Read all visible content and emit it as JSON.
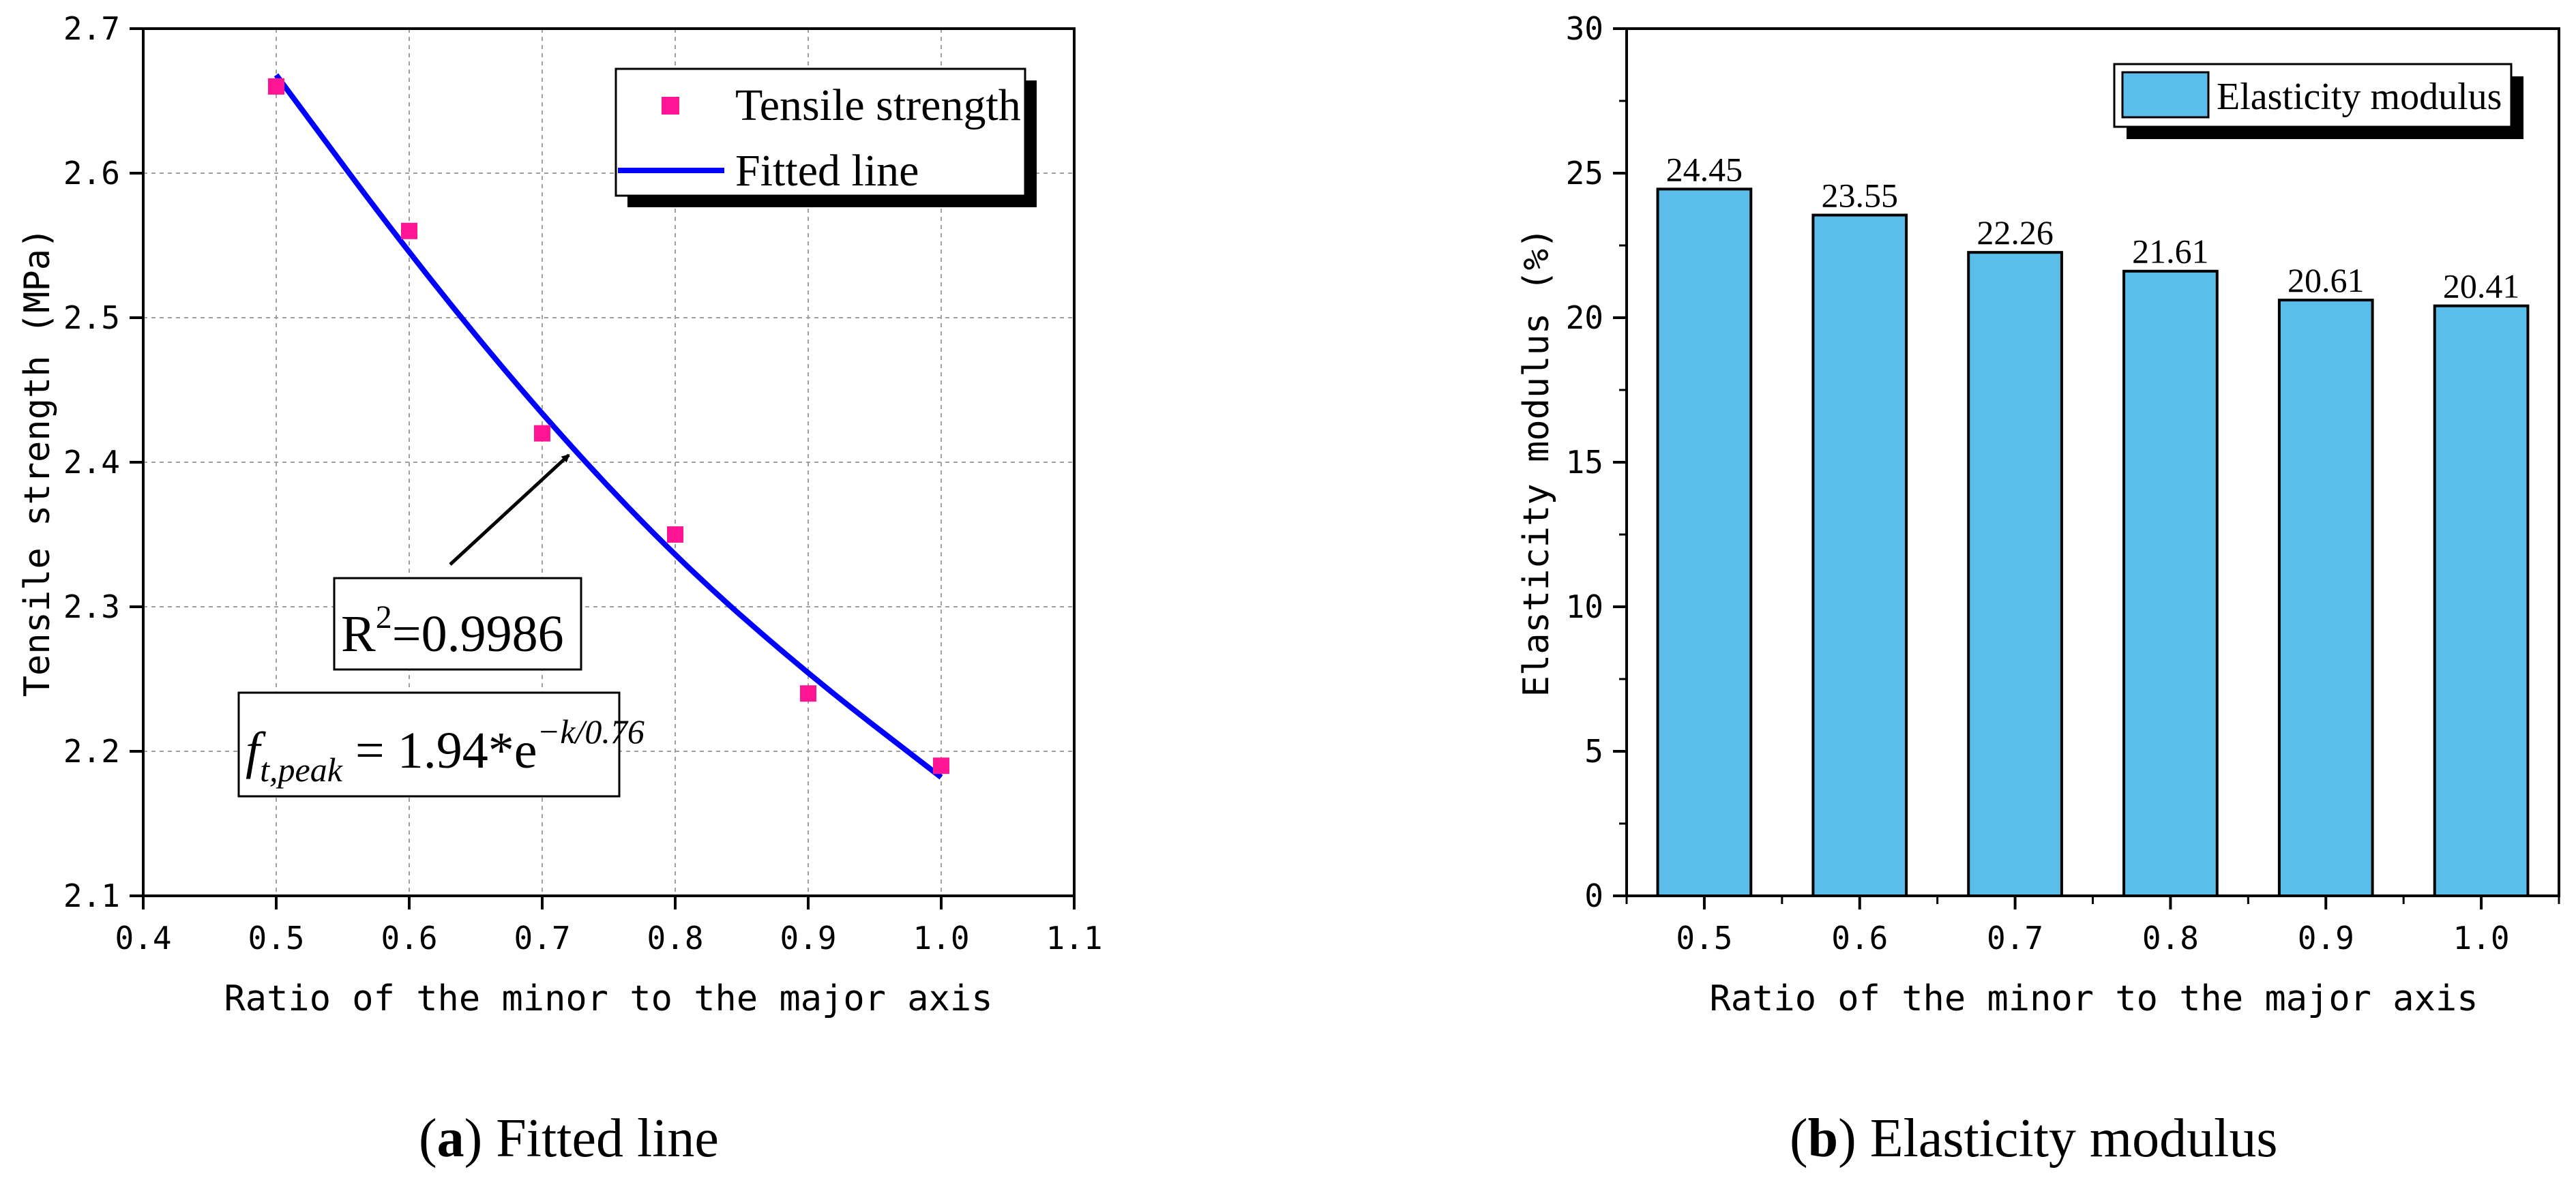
{
  "chart_data": [
    {
      "type": "scatter",
      "caption": {
        "label": "a",
        "text": "Fitted line"
      },
      "xlabel": "Ratio of the minor to the major axis",
      "ylabel": "Tensile strength (MPa)",
      "xlim": [
        0.4,
        1.1
      ],
      "ylim": [
        2.1,
        2.7
      ],
      "grid": true,
      "xticks": [
        "0.4",
        "0.5",
        "0.6",
        "0.7",
        "0.8",
        "0.9",
        "1.0",
        "1.1"
      ],
      "yticks": [
        "2.1",
        "2.2",
        "2.3",
        "2.4",
        "2.5",
        "2.6",
        "2.7"
      ],
      "series": [
        {
          "name": "Tensile strength",
          "kind": "scatter",
          "color": "#ff1493",
          "x": [
            0.5,
            0.6,
            0.7,
            0.8,
            0.9,
            1.0
          ],
          "y": [
            2.66,
            2.56,
            2.42,
            2.35,
            2.24,
            2.19
          ]
        },
        {
          "name": "Fitted line",
          "kind": "line",
          "color": "#0000ff",
          "x": [
            0.5,
            0.6,
            0.7,
            0.8,
            0.9,
            1.0
          ],
          "y": [
            2.668,
            2.544,
            2.432,
            2.334,
            2.253,
            2.182
          ]
        }
      ],
      "legend": {
        "position": "top-right",
        "entries": [
          "Tensile strength",
          "Fitted line"
        ]
      },
      "annotations": {
        "r2_base": "R",
        "r2_sup": "2",
        "r2_value": "=0.9986",
        "eq_f": "f",
        "eq_sub": "t,peak",
        "eq_mid": " = 1.94*e",
        "eq_sup": "−k/0.76",
        "arrow_target": {
          "x": 0.72,
          "y": 2.405
        }
      }
    },
    {
      "type": "bar",
      "caption": {
        "label": "b",
        "text": "Elasticity modulus"
      },
      "xlabel": "Ratio of the minor to the major axis",
      "ylabel": "Elasticity modulus (%)",
      "ylim": [
        0,
        30
      ],
      "yticks": [
        "0",
        "5",
        "10",
        "15",
        "20",
        "25",
        "30"
      ],
      "categories": [
        "0.5",
        "0.6",
        "0.7",
        "0.8",
        "0.9",
        "1.0"
      ],
      "series": [
        {
          "name": "Elasticity modulus",
          "color": "#5bbdea",
          "values": [
            24.45,
            23.55,
            22.26,
            21.61,
            20.61,
            20.41
          ],
          "labels": [
            "24.45",
            "23.55",
            "22.26",
            "21.61",
            "20.61",
            "20.41"
          ]
        }
      ],
      "legend": {
        "position": "top-right",
        "entries": [
          "Elasticity modulus"
        ]
      }
    }
  ]
}
